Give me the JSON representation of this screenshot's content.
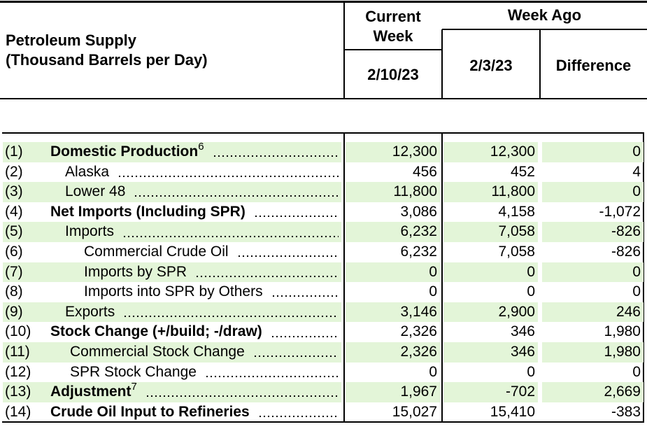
{
  "header": {
    "title": [
      "Petroleum Supply",
      "(Thousand Barrels per Day)"
    ],
    "current_week": "Current Week",
    "week_ago": "Week Ago",
    "current_date": "2/10/23",
    "prior_date": "2/3/23",
    "difference": "Difference"
  },
  "rows": [
    {
      "number": "(1)",
      "label": "Domestic Production",
      "note": "6",
      "current": "12,300",
      "week_ago": "12,300",
      "difference": "0"
    },
    {
      "number": "(2)",
      "label": "Alaska",
      "current": "456",
      "week_ago": "452",
      "difference": "4"
    },
    {
      "number": "(3)",
      "label": "Lower 48",
      "current": "11,800",
      "week_ago": "11,800",
      "difference": "0"
    },
    {
      "number": "(4)",
      "label": "Net Imports (Including SPR)",
      "current": "3,086",
      "week_ago": "4,158",
      "difference": "-1,072"
    },
    {
      "number": "(5)",
      "label": "Imports",
      "current": "6,232",
      "week_ago": "7,058",
      "difference": "-826"
    },
    {
      "number": "(6)",
      "label": "Commercial Crude Oil",
      "current": "6,232",
      "week_ago": "7,058",
      "difference": "-826"
    },
    {
      "number": "(7)",
      "label": "Imports by SPR",
      "current": "0",
      "week_ago": "0",
      "difference": "0"
    },
    {
      "number": "(8)",
      "label": "Imports into SPR by Others",
      "current": "0",
      "week_ago": "0",
      "difference": "0"
    },
    {
      "number": "(9)",
      "label": "Exports",
      "current": "3,146",
      "week_ago": "2,900",
      "difference": "246"
    },
    {
      "number": "(10)",
      "label": "Stock Change (+/build; -/draw)",
      "current": "2,326",
      "week_ago": "346",
      "difference": "1,980"
    },
    {
      "number": "(11)",
      "label": "Commercial Stock Change",
      "current": "2,326",
      "week_ago": "346",
      "difference": "1,980"
    },
    {
      "number": "(12)",
      "label": "SPR Stock Change",
      "current": "0",
      "week_ago": "0",
      "difference": "0"
    },
    {
      "number": "(13)",
      "label": "Adjustment",
      "note": "7",
      "current": "1,967",
      "week_ago": "-702",
      "difference": "2,669"
    },
    {
      "number": "(14)",
      "label": "Crude Oil Input to Refineries",
      "current": "15,027",
      "week_ago": "15,410",
      "difference": "-383"
    }
  ]
}
